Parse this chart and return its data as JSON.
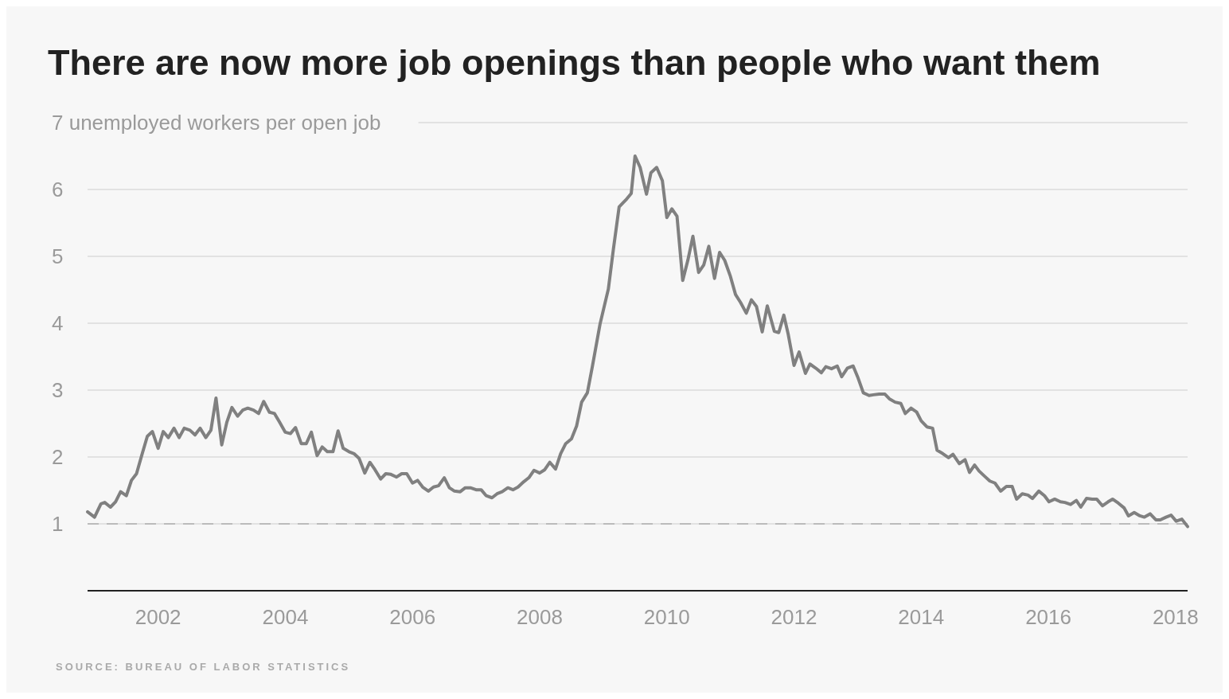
{
  "chart_data": {
    "type": "line",
    "title": "There are now more job openings than people who want them",
    "x": [
      2000.89,
      2001.0,
      2001.1,
      2001.16,
      2001.25,
      2001.33,
      2001.41,
      2001.5,
      2001.58,
      2001.66,
      2001.75,
      2001.83,
      2001.91,
      2002.0,
      2002.08,
      2002.16,
      2002.25,
      2002.33,
      2002.41,
      2002.5,
      2002.58,
      2002.66,
      2002.75,
      2002.83,
      2002.91,
      2003.0,
      2003.08,
      2003.16,
      2003.25,
      2003.33,
      2003.41,
      2003.5,
      2003.58,
      2003.66,
      2003.75,
      2003.83,
      2003.91,
      2004.0,
      2004.08,
      2004.16,
      2004.25,
      2004.33,
      2004.41,
      2004.5,
      2004.58,
      2004.66,
      2004.75,
      2004.83,
      2004.91,
      2005.0,
      2005.08,
      2005.16,
      2005.25,
      2005.33,
      2005.41,
      2005.5,
      2005.58,
      2005.66,
      2005.75,
      2005.83,
      2005.91,
      2006.0,
      2006.08,
      2006.16,
      2006.25,
      2006.33,
      2006.41,
      2006.5,
      2006.58,
      2006.66,
      2006.75,
      2006.83,
      2006.91,
      2007.0,
      2007.08,
      2007.16,
      2007.25,
      2007.33,
      2007.41,
      2007.5,
      2007.58,
      2007.66,
      2007.75,
      2007.83,
      2007.91,
      2008.0,
      2008.08,
      2008.16,
      2008.25,
      2008.33,
      2008.41,
      2008.5,
      2008.58,
      2008.66,
      2008.75,
      2008.83,
      2008.95,
      2009.08,
      2009.16,
      2009.25,
      2009.37,
      2009.44,
      2009.5,
      2009.58,
      2009.68,
      2009.75,
      2009.84,
      2009.93,
      2010.0,
      2010.08,
      2010.16,
      2010.25,
      2010.33,
      2010.41,
      2010.5,
      2010.58,
      2010.66,
      2010.75,
      2010.83,
      2010.91,
      2011.0,
      2011.08,
      2011.16,
      2011.25,
      2011.33,
      2011.41,
      2011.5,
      2011.58,
      2011.69,
      2011.76,
      2011.84,
      2011.91,
      2012.0,
      2012.08,
      2012.18,
      2012.25,
      2012.34,
      2012.43,
      2012.5,
      2012.59,
      2012.68,
      2012.75,
      2012.84,
      2012.93,
      2013.0,
      2013.09,
      2013.18,
      2013.25,
      2013.34,
      2013.43,
      2013.5,
      2013.59,
      2013.68,
      2013.75,
      2013.84,
      2013.93,
      2014.0,
      2014.09,
      2014.18,
      2014.25,
      2014.34,
      2014.43,
      2014.5,
      2014.6,
      2014.69,
      2014.76,
      2014.84,
      2014.91,
      2015.0,
      2015.08,
      2015.16,
      2015.25,
      2015.34,
      2015.43,
      2015.5,
      2015.59,
      2015.68,
      2015.75,
      2015.85,
      2015.94,
      2016.01,
      2016.1,
      2016.19,
      2016.26,
      2016.35,
      2016.44,
      2016.51,
      2016.6,
      2016.69,
      2016.76,
      2016.85,
      2016.94,
      2017.01,
      2017.1,
      2017.19,
      2017.26,
      2017.35,
      2017.44,
      2017.51,
      2017.6,
      2017.69,
      2017.76,
      2017.85,
      2017.93,
      2018.01,
      2018.1,
      2018.19
    ],
    "series": [
      {
        "color": "#808080",
        "values": [
          1.18,
          1.1,
          1.3,
          1.32,
          1.25,
          1.33,
          1.48,
          1.42,
          1.65,
          1.75,
          2.05,
          2.31,
          2.38,
          2.13,
          2.38,
          2.29,
          2.43,
          2.29,
          2.43,
          2.4,
          2.33,
          2.43,
          2.29,
          2.4,
          2.88,
          2.18,
          2.52,
          2.74,
          2.61,
          2.7,
          2.73,
          2.7,
          2.65,
          2.83,
          2.67,
          2.65,
          2.52,
          2.37,
          2.35,
          2.44,
          2.2,
          2.2,
          2.37,
          2.02,
          2.15,
          2.08,
          2.08,
          2.39,
          2.13,
          2.08,
          2.05,
          1.98,
          1.76,
          1.92,
          1.81,
          1.67,
          1.75,
          1.74,
          1.7,
          1.75,
          1.75,
          1.61,
          1.65,
          1.55,
          1.49,
          1.55,
          1.57,
          1.69,
          1.54,
          1.49,
          1.48,
          1.54,
          1.54,
          1.51,
          1.51,
          1.42,
          1.39,
          1.45,
          1.48,
          1.54,
          1.51,
          1.55,
          1.63,
          1.69,
          1.8,
          1.76,
          1.81,
          1.92,
          1.82,
          2.05,
          2.2,
          2.27,
          2.46,
          2.82,
          2.96,
          3.36,
          3.99,
          4.51,
          5.11,
          5.74,
          5.86,
          5.94,
          6.5,
          6.33,
          5.93,
          6.25,
          6.33,
          6.13,
          5.58,
          5.71,
          5.6,
          4.64,
          4.94,
          5.3,
          4.76,
          4.87,
          5.15,
          4.67,
          5.06,
          4.94,
          4.7,
          4.43,
          4.31,
          4.15,
          4.35,
          4.25,
          3.87,
          4.26,
          3.88,
          3.86,
          4.12,
          3.83,
          3.37,
          3.57,
          3.25,
          3.39,
          3.33,
          3.26,
          3.35,
          3.32,
          3.36,
          3.2,
          3.33,
          3.36,
          3.2,
          2.96,
          2.92,
          2.93,
          2.94,
          2.94,
          2.87,
          2.82,
          2.8,
          2.65,
          2.73,
          2.67,
          2.54,
          2.45,
          2.43,
          2.1,
          2.05,
          1.99,
          2.04,
          1.9,
          1.96,
          1.77,
          1.88,
          1.79,
          1.71,
          1.64,
          1.61,
          1.49,
          1.56,
          1.56,
          1.37,
          1.45,
          1.43,
          1.38,
          1.49,
          1.42,
          1.33,
          1.37,
          1.33,
          1.32,
          1.29,
          1.35,
          1.25,
          1.38,
          1.37,
          1.37,
          1.27,
          1.33,
          1.37,
          1.31,
          1.24,
          1.12,
          1.17,
          1.12,
          1.1,
          1.15,
          1.06,
          1.06,
          1.1,
          1.13,
          1.04,
          1.07,
          0.96
        ]
      }
    ],
    "xlim": [
      2000.89,
      2018.19
    ],
    "xticks": [
      2002,
      2004,
      2006,
      2008,
      2010,
      2012,
      2014,
      2016,
      2018
    ],
    "ylim": [
      0,
      7
    ],
    "yticks": [
      1,
      2,
      3,
      4,
      5,
      6,
      {
        "value": 7,
        "label": "7 unemployed workers per open job"
      }
    ],
    "grid": "y",
    "ref_lines": [
      {
        "axis": "y",
        "value": 1,
        "line_style": "dashed"
      }
    ],
    "annotations": [
      "SOURCE: BUREAU OF LABOR STATISTICS"
    ]
  }
}
